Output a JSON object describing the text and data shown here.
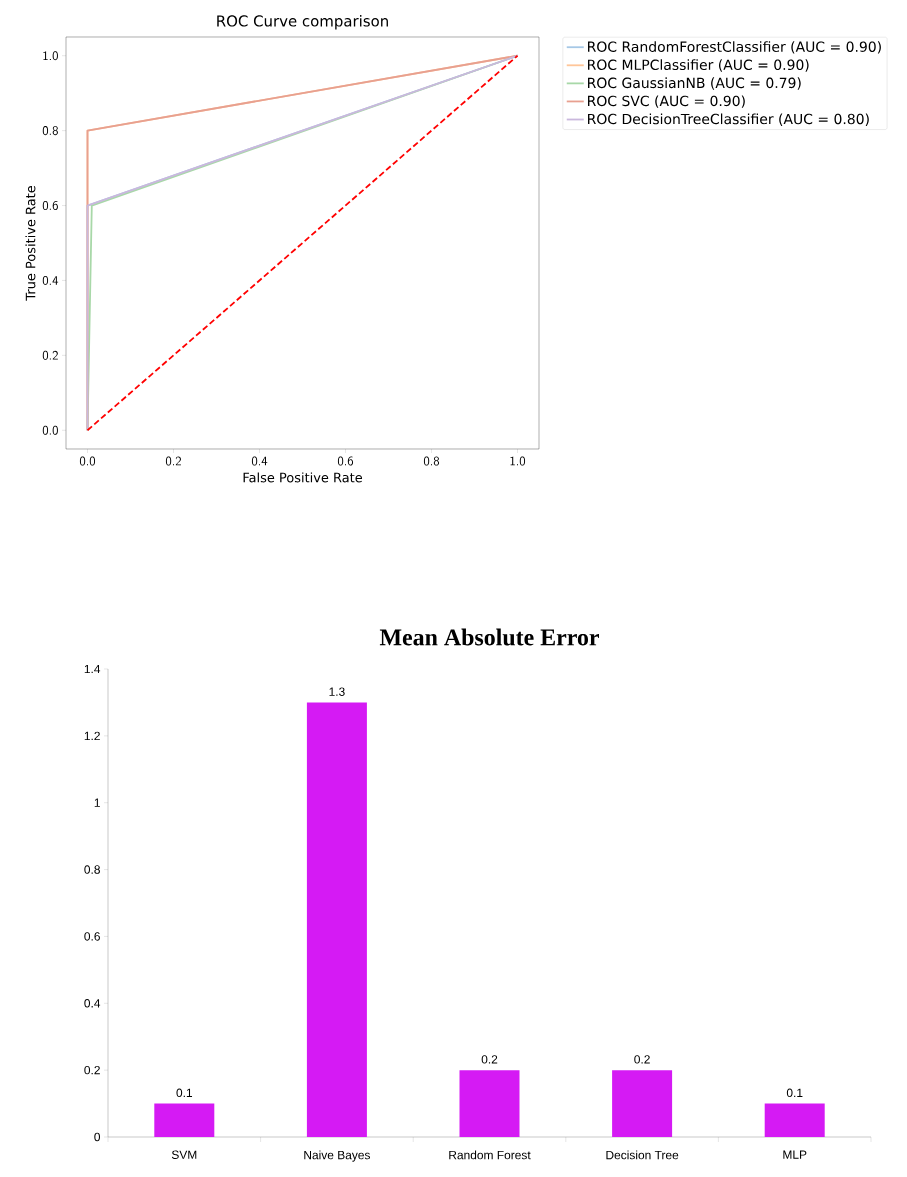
{
  "chart_data": [
    {
      "type": "line",
      "title": "ROC Curve comparison",
      "xlabel": "False Positive Rate",
      "ylabel": "True Positive Rate",
      "series": [
        {
          "name": "ROC RandomForestClassifier (AUC = 0.90)",
          "color": "#a6c8e6",
          "x": [
            0,
            0,
            1
          ],
          "values": [
            0,
            0.6,
            1
          ]
        },
        {
          "name": "ROC MLPClassifier (AUC = 0.90)",
          "color": "#ffc699",
          "x": [
            0,
            0,
            1
          ],
          "values": [
            0,
            0.8,
            1
          ]
        },
        {
          "name": "ROC GaussianNB (AUC = 0.79)",
          "color": "#a8d8a8",
          "x": [
            0,
            0.01,
            1
          ],
          "values": [
            0,
            0.6,
            1
          ]
        },
        {
          "name": "ROC SVC (AUC = 0.90)",
          "color": "#e8a090",
          "x": [
            0,
            0,
            1
          ],
          "values": [
            0,
            0.8,
            1
          ]
        },
        {
          "name": "ROC DecisionTreeClassifier (AUC = 0.80)",
          "color": "#cab8dd",
          "x": [
            0,
            0,
            1
          ],
          "values": [
            0,
            0.6,
            1
          ]
        },
        {
          "color": "#ff0000",
          "x": [
            0,
            1
          ],
          "values": [
            0,
            1
          ],
          "line_style": "dashed"
        }
      ],
      "xlim": [
        -0.05,
        1.05
      ],
      "ylim": [
        -0.05,
        1.05
      ],
      "xticks": [
        {
          "value": 0,
          "label": "0.0"
        },
        0.2,
        0.4,
        0.6,
        0.8,
        {
          "value": 1,
          "label": "1.0"
        }
      ],
      "yticks": [
        {
          "value": 0,
          "label": "0.0"
        },
        0.2,
        0.4,
        0.6,
        0.8,
        {
          "value": 1,
          "label": "1.0"
        }
      ],
      "legend": "right",
      "grid": false
    },
    {
      "type": "bar",
      "title": "Mean Absolute Error",
      "categories": [
        "SVM",
        "Naive Bayes",
        "Random Forest",
        "Decision Tree",
        "MLP"
      ],
      "values": [
        0.1,
        1.3,
        0.2,
        0.2,
        0.1
      ],
      "color": "#d51af4",
      "ylim": [
        0,
        1.4
      ],
      "yticks": [
        0,
        0.2,
        0.4,
        0.6,
        0.8,
        1,
        1.2,
        1.4
      ],
      "data_labels": true,
      "grid": false
    }
  ]
}
